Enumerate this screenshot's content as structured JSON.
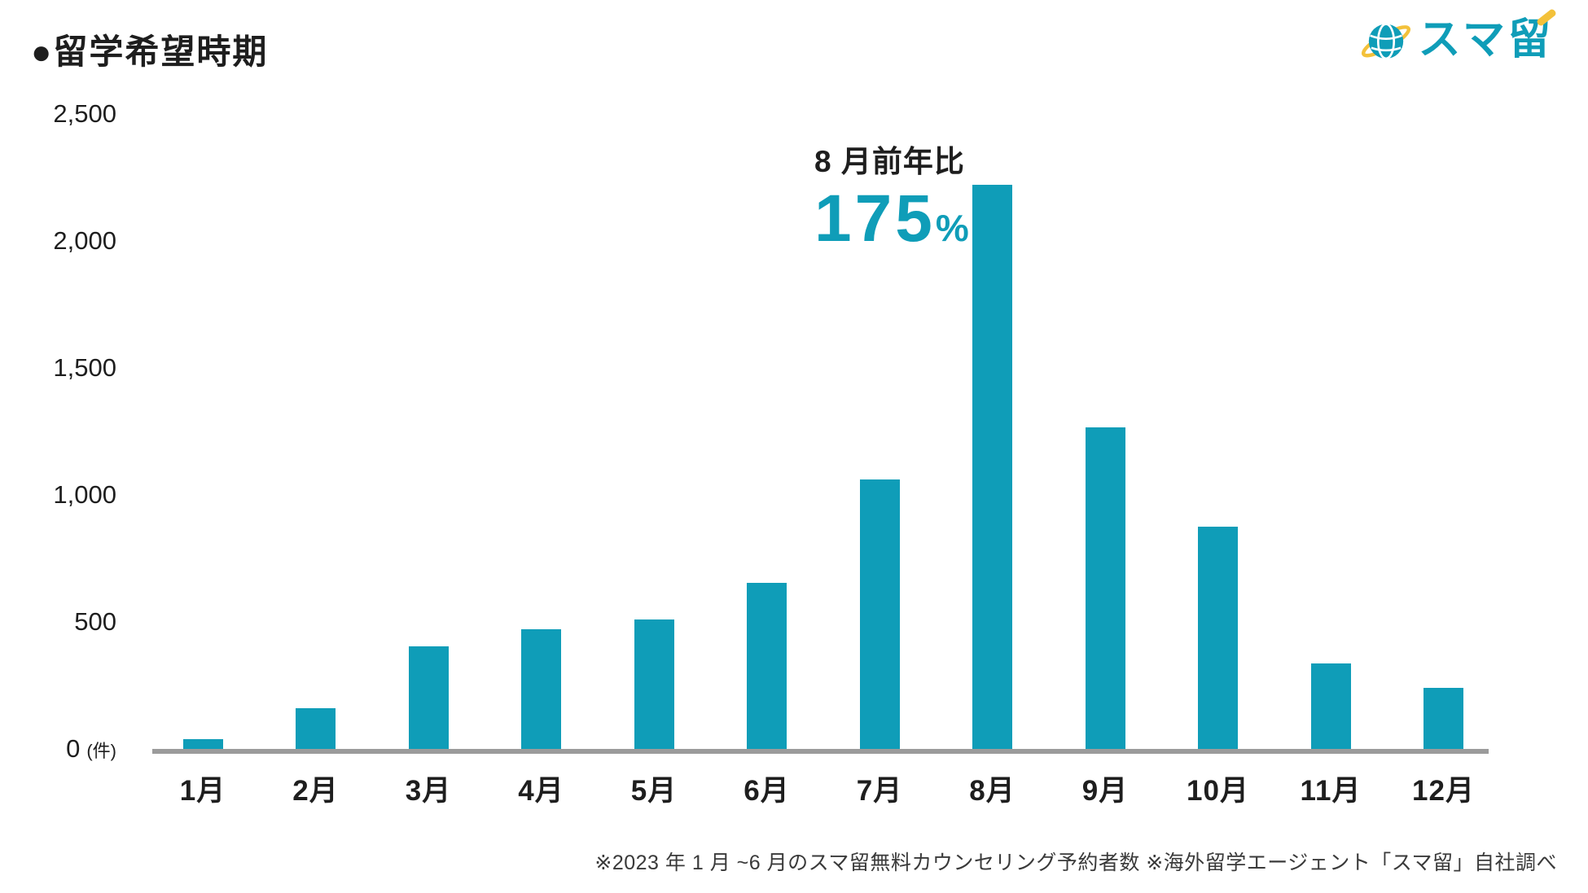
{
  "header": {
    "title": "●留学希望時期",
    "logo_text": "スマ留"
  },
  "annotation": {
    "label": "8 月前年比",
    "value": "175",
    "unit": "%"
  },
  "footer": {
    "note": "※2023 年 1 月 ~6 月のスマ留無料カウンセリング予約者数 ※海外留学エージェント「スマ留」自社調べ"
  },
  "colors": {
    "accent_teal": "#0f9db8",
    "logo_yellow": "#f3c13a",
    "axis_gray": "#9b9b9b",
    "text_black": "#1e1e1e"
  },
  "chart_data": {
    "type": "bar",
    "title": "留学希望時期",
    "categories": [
      "1月",
      "2月",
      "3月",
      "4月",
      "5月",
      "6月",
      "7月",
      "8月",
      "9月",
      "10月",
      "11月",
      "12月"
    ],
    "values": [
      40,
      160,
      405,
      470,
      510,
      655,
      1060,
      2220,
      1265,
      875,
      335,
      240
    ],
    "xlabel": "",
    "ylabel": "件",
    "ylabel_unit_label": "(件)",
    "ylim": [
      0,
      2500
    ],
    "yticks": [
      0,
      500,
      1000,
      1500,
      2000,
      2500
    ],
    "ytick_labels": [
      "0",
      "500",
      "1,000",
      "1,500",
      "2,000",
      "2,500"
    ],
    "grid": false,
    "legend": "none",
    "bar_color": "#0f9db8",
    "annotation": "8 月前年比 175%"
  }
}
